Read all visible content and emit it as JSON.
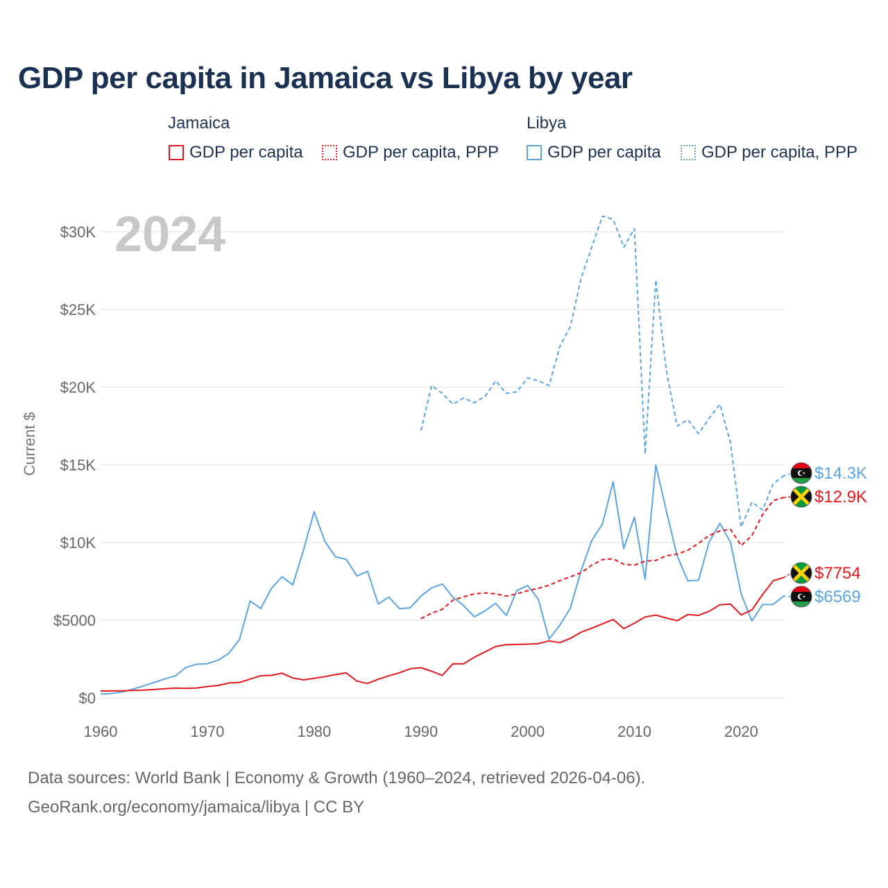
{
  "title": "GDP per capita in Jamaica vs Libya by year",
  "legend": {
    "jamaica_label": "Jamaica",
    "libya_label": "Libya",
    "jamaica_gdp": "GDP per capita",
    "jamaica_ppp": "GDP per capita, PPP",
    "libya_gdp": "GDP per capita",
    "libya_ppp": "GDP per capita, PPP"
  },
  "colors": {
    "jamaica": "#e3181c",
    "libya": "#5aa4e4",
    "year_watermark": "#c8c8c8"
  },
  "footer": {
    "line1": "Data sources: World Bank | Economy & Growth (1960–2024, retrieved 2026-04-06).",
    "line2": "GeoRank.org/economy/jamaica/libya | CC BY"
  },
  "chart_data": {
    "type": "line",
    "title": "GDP per capita in Jamaica vs Libya by year",
    "ylabel": "Current $",
    "xlabel": "",
    "year_watermark": "2024",
    "xlim": [
      1960,
      2024
    ],
    "ylim": [
      0,
      32000
    ],
    "xticks": [
      1960,
      1970,
      1980,
      1990,
      2000,
      2010,
      2020
    ],
    "xtick_labels": [
      "1960",
      "1970",
      "1980",
      "1990",
      "2000",
      "2010",
      "2020"
    ],
    "yticks": [
      0,
      5000,
      10000,
      15000,
      20000,
      25000,
      30000
    ],
    "ytick_labels": [
      "$0",
      "$5000",
      "$10K",
      "$15K",
      "$20K",
      "$25K",
      "$30K"
    ],
    "end_labels": {
      "libya_ppp": "$14.3K",
      "jamaica_ppp": "$12.9K",
      "jamaica_gdp": "$7754",
      "libya_gdp": "$6569"
    },
    "series": [
      {
        "key": "libya_gdp",
        "name": "Libya GDP per capita",
        "style": "solid",
        "color": "#5aa4e4",
        "x": [
          1960,
          1961,
          1962,
          1963,
          1964,
          1965,
          1966,
          1967,
          1968,
          1969,
          1970,
          1971,
          1972,
          1973,
          1974,
          1975,
          1976,
          1977,
          1978,
          1979,
          1980,
          1981,
          1982,
          1983,
          1984,
          1985,
          1986,
          1987,
          1988,
          1989,
          1990,
          1991,
          1992,
          1993,
          1994,
          1995,
          1996,
          1997,
          1998,
          1999,
          2000,
          2001,
          2002,
          2003,
          2004,
          2005,
          2006,
          2007,
          2008,
          2009,
          2010,
          2011,
          2012,
          2013,
          2014,
          2015,
          2016,
          2017,
          2018,
          2019,
          2020,
          2021,
          2022,
          2023,
          2024
        ],
        "values": [
          250,
          280,
          380,
          560,
          770,
          990,
          1220,
          1420,
          1970,
          2170,
          2200,
          2430,
          2860,
          3750,
          6230,
          5750,
          7050,
          7800,
          7270,
          9500,
          11980,
          10080,
          9080,
          8920,
          7850,
          8140,
          6040,
          6490,
          5740,
          5800,
          6550,
          7080,
          7330,
          6480,
          5940,
          5220,
          5600,
          6090,
          5310,
          6910,
          7230,
          6350,
          3780,
          4670,
          5790,
          8190,
          10130,
          11190,
          13910,
          9610,
          11630,
          7640,
          14990,
          11990,
          9140,
          7530,
          7570,
          10050,
          11230,
          10010,
          6680,
          4950,
          6010,
          6020,
          6569
        ]
      },
      {
        "key": "libya_ppp",
        "name": "Libya GDP per capita, PPP",
        "style": "dashed",
        "color": "#5aa4e4",
        "x": [
          1990,
          1991,
          1992,
          1993,
          1994,
          1995,
          1996,
          1997,
          1998,
          1999,
          2000,
          2001,
          2002,
          2003,
          2004,
          2005,
          2006,
          2007,
          2008,
          2009,
          2010,
          2011,
          2012,
          2013,
          2014,
          2015,
          2016,
          2017,
          2018,
          2019,
          2020,
          2021,
          2022,
          2023,
          2024
        ],
        "values": [
          17200,
          20100,
          19600,
          18900,
          19300,
          19000,
          19400,
          20400,
          19600,
          19700,
          20600,
          20400,
          20100,
          22600,
          23900,
          27000,
          29000,
          31000,
          30800,
          29000,
          30200,
          15700,
          26900,
          21000,
          17500,
          17900,
          17000,
          18000,
          18900,
          16400,
          11000,
          12600,
          12100,
          13800,
          14300
        ]
      },
      {
        "key": "jamaica_gdp",
        "name": "Jamaica GDP per capita",
        "style": "solid",
        "color": "#e3181c",
        "x": [
          1960,
          1961,
          1962,
          1963,
          1964,
          1965,
          1966,
          1967,
          1968,
          1969,
          1970,
          1971,
          1972,
          1973,
          1974,
          1975,
          1976,
          1977,
          1978,
          1979,
          1980,
          1981,
          1982,
          1983,
          1984,
          1985,
          1986,
          1987,
          1988,
          1989,
          1990,
          1991,
          1992,
          1993,
          1994,
          1995,
          1996,
          1997,
          1998,
          1999,
          2000,
          2001,
          2002,
          2003,
          2004,
          2005,
          2006,
          2007,
          2008,
          2009,
          2010,
          2011,
          2012,
          2013,
          2014,
          2015,
          2016,
          2017,
          2018,
          2019,
          2020,
          2021,
          2022,
          2023,
          2024
        ],
        "values": [
          440,
          450,
          460,
          480,
          500,
          540,
          590,
          630,
          610,
          640,
          730,
          800,
          960,
          990,
          1210,
          1430,
          1450,
          1590,
          1280,
          1160,
          1260,
          1370,
          1500,
          1610,
          1080,
          930,
          1200,
          1420,
          1620,
          1880,
          1940,
          1720,
          1450,
          2200,
          2190,
          2620,
          2960,
          3310,
          3430,
          3440,
          3460,
          3490,
          3670,
          3560,
          3830,
          4230,
          4480,
          4770,
          5050,
          4460,
          4810,
          5210,
          5330,
          5140,
          4970,
          5370,
          5310,
          5580,
          5990,
          6040,
          5340,
          5660,
          6650,
          7540,
          7754
        ]
      },
      {
        "key": "jamaica_ppp",
        "name": "Jamaica GDP per capita, PPP",
        "style": "dashed",
        "color": "#e3181c",
        "x": [
          1990,
          1991,
          1992,
          1993,
          1994,
          1995,
          1996,
          1997,
          1998,
          1999,
          2000,
          2001,
          2002,
          2003,
          2004,
          2005,
          2006,
          2007,
          2008,
          2009,
          2010,
          2011,
          2012,
          2013,
          2014,
          2015,
          2016,
          2017,
          2018,
          2019,
          2020,
          2021,
          2022,
          2023,
          2024
        ],
        "values": [
          5100,
          5450,
          5700,
          6300,
          6500,
          6700,
          6750,
          6700,
          6550,
          6700,
          6900,
          7050,
          7250,
          7550,
          7800,
          8050,
          8550,
          8900,
          8950,
          8600,
          8550,
          8800,
          8850,
          9150,
          9250,
          9500,
          9950,
          10450,
          10750,
          10850,
          9800,
          10450,
          11800,
          12700,
          12900
        ]
      }
    ]
  }
}
